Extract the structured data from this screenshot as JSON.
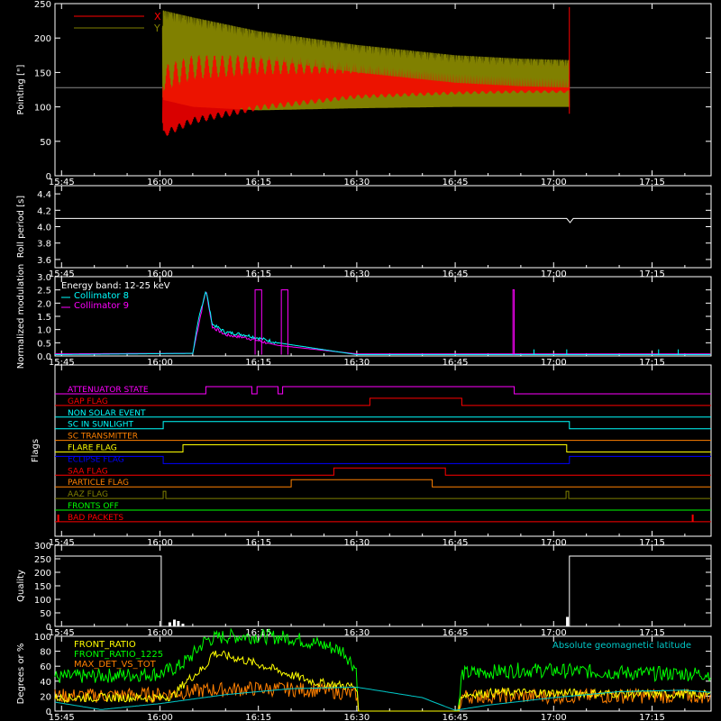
{
  "colors": {
    "background": "#000000",
    "axis": "#ffffff",
    "x_series": "#ff0000",
    "y_series": "#808000",
    "collimator8": "#00ffff",
    "collimator9": "#ff00ff",
    "front_ratio": "#ffff00",
    "front_ratio_1225": "#00ff00",
    "max_det": "#ff8000",
    "geomag": "#00c8c8"
  },
  "time_axis": {
    "tick_labels": [
      "15:45",
      "16:00",
      "16:15",
      "16:30",
      "16:45",
      "17:00",
      "17:15"
    ],
    "tick_minutes": [
      945,
      960,
      975,
      990,
      1005,
      1020,
      1035
    ],
    "range_minutes": [
      944,
      1044
    ]
  },
  "chart_data": [
    {
      "type": "line",
      "ylabel": "Pointing [\"]",
      "yticks": [
        "0",
        "50",
        "100",
        "150",
        "200",
        "250"
      ],
      "ylim": [
        0,
        250
      ],
      "legend": [
        "X",
        "Y"
      ],
      "series": [
        {
          "name": "X",
          "color": "#ff0000",
          "x": [
            944,
            960,
            960.5,
            965,
            975,
            990,
            1005,
            1015,
            1022.5
          ],
          "y": [
            128,
            128,
            55,
            75,
            95,
            112,
            118,
            120,
            120
          ],
          "upper": [
            128,
            128,
            160,
            175,
            175,
            168,
            163,
            160,
            160
          ]
        },
        {
          "name": "Y",
          "color": "#808000",
          "x": [
            944,
            960,
            960.5,
            965,
            975,
            990,
            1005,
            1015,
            1022.5
          ],
          "y": [
            128,
            128,
            240,
            230,
            210,
            190,
            175,
            170,
            168
          ],
          "lower": [
            128,
            128,
            110,
            100,
            95,
            98,
            100,
            100,
            100
          ]
        },
        {
          "name": "baseline",
          "x": [
            944,
            960,
            1022.5,
            1044
          ],
          "y": [
            128,
            128,
            128,
            128
          ]
        }
      ]
    },
    {
      "type": "line",
      "ylabel": "Roll period [s]",
      "yticks": [
        "3.6",
        "3.8",
        "4.0",
        "4.2",
        "4.4"
      ],
      "ylim": [
        3.5,
        4.5
      ],
      "series": [
        {
          "name": "roll",
          "x": [
            944,
            1044
          ],
          "y": [
            4.1,
            4.1
          ]
        }
      ]
    },
    {
      "type": "line",
      "ylabel": "Normalized modulation",
      "yticks": [
        "0.0",
        "0.5",
        "1.0",
        "1.5",
        "2.0",
        "2.5",
        "3.0"
      ],
      "ylim": [
        0,
        3
      ],
      "legend": [
        "Energy band: 12-25 keV",
        "Collimator 8",
        "Collimator 9"
      ],
      "series": [
        {
          "name": "Collimator 8",
          "color": "#00ffff",
          "x": [
            944,
            965,
            966,
            967,
            968,
            970,
            973,
            978,
            990,
            1005,
            1044
          ],
          "y": [
            0.05,
            0.1,
            1.5,
            2.5,
            1.2,
            0.9,
            0.8,
            0.5,
            0.05,
            0.05,
            0.05
          ]
        },
        {
          "name": "Collimator 9",
          "color": "#ff00ff",
          "x": [
            944,
            965,
            966,
            967,
            968,
            970,
            973,
            978,
            990,
            1005,
            1044
          ],
          "y": [
            0.08,
            0.1,
            1.3,
            2.5,
            1.1,
            0.8,
            0.7,
            0.4,
            0.08,
            0.08,
            0.08
          ],
          "spikes": [
            [
              974.5,
              975.5
            ],
            [
              978.5,
              979.5
            ],
            [
              1013.8,
              1014.0
            ]
          ]
        }
      ]
    },
    {
      "type": "table",
      "ylabel": "Flags",
      "flags": [
        {
          "label": "ATTENUATOR STATE",
          "color": "#ff00ff",
          "steps": [
            [
              944,
              0
            ],
            [
              967,
              1
            ],
            [
              974,
              0
            ],
            [
              974.8,
              1
            ],
            [
              978,
              0
            ],
            [
              978.7,
              1
            ],
            [
              1014,
              0
            ]
          ]
        },
        {
          "label": "GAP FLAG",
          "color": "#ff0000",
          "steps": [
            [
              944,
              0
            ],
            [
              992,
              1
            ],
            [
              1006,
              0
            ]
          ]
        },
        {
          "label": "NON SOLAR EVENT",
          "color": "#00ffff",
          "steps": [
            [
              944,
              0
            ]
          ]
        },
        {
          "label": "SC IN SUNLIGHT",
          "color": "#00ffff",
          "steps": [
            [
              944,
              0
            ],
            [
              960.5,
              1
            ],
            [
              1022.4,
              0
            ]
          ]
        },
        {
          "label": "SC TRANSMITTER",
          "color": "#ff8000",
          "steps": [
            [
              944,
              0
            ]
          ]
        },
        {
          "label": "FLARE FLAG",
          "color": "#ffff00",
          "steps": [
            [
              944,
              0
            ],
            [
              963.5,
              1
            ],
            [
              1022,
              0
            ]
          ]
        },
        {
          "label": "ECLIPSE FLAG",
          "color": "#0000ff",
          "steps": [
            [
              944,
              1
            ],
            [
              960.5,
              0
            ],
            [
              1022.4,
              1
            ]
          ]
        },
        {
          "label": "SAA FLAG",
          "color": "#ff0000",
          "steps": [
            [
              944,
              0
            ],
            [
              986.5,
              1
            ],
            [
              1003.5,
              0
            ]
          ]
        },
        {
          "label": "PARTICLE FLAG",
          "color": "#ff8000",
          "steps": [
            [
              944,
              0
            ],
            [
              980,
              1
            ],
            [
              1001.5,
              0
            ]
          ]
        },
        {
          "label": "AAZ FLAG",
          "color": "#808000",
          "steps": [
            [
              944,
              0
            ],
            [
              960.5,
              1
            ],
            [
              960.9,
              0
            ],
            [
              1021.9,
              1
            ],
            [
              1022.3,
              0
            ]
          ]
        },
        {
          "label": "FRONTS OFF",
          "color": "#00ff00",
          "steps": [
            [
              944,
              0
            ]
          ]
        },
        {
          "label": "BAD PACKETS",
          "color": "#ff0000",
          "steps": [
            [
              944,
              0
            ]
          ],
          "spikes": [
            944.5,
            1041.2
          ]
        }
      ]
    },
    {
      "type": "line",
      "ylabel": "Quality",
      "yticks": [
        "0",
        "50",
        "100",
        "150",
        "200",
        "250",
        "300"
      ],
      "ylim": [
        0,
        300
      ],
      "series": [
        {
          "name": "quality",
          "x": [
            944,
            960.2,
            960.2,
            1022.4,
            1022.4,
            1044
          ],
          "y": [
            260,
            260,
            0,
            0,
            260,
            260
          ],
          "blips": [
            [
              961.5,
              15
            ],
            [
              962.2,
              25
            ],
            [
              962.8,
              20
            ],
            [
              963.5,
              10
            ],
            [
              1022.1,
              35
            ]
          ]
        }
      ]
    },
    {
      "type": "line",
      "ylabel": "Degrees or %",
      "yticks": [
        "0",
        "20",
        "40",
        "60",
        "80",
        "100"
      ],
      "ylim": [
        0,
        100
      ],
      "legend": [
        "FRONT_RATIO",
        "FRONT_RATIO_1225",
        "MAX_DET_VS_TOT"
      ],
      "annotation": "Absolute geomagnetic latitude",
      "series": [
        {
          "name": "FRONT_RATIO_1225",
          "color": "#00ff00",
          "x": [
            944,
            960,
            963,
            965,
            967,
            970,
            975,
            980,
            985,
            988,
            990,
            990.2,
            1005.5,
            1006,
            1015,
            1025,
            1035,
            1044
          ],
          "y": [
            45,
            50,
            60,
            75,
            95,
            100,
            100,
            98,
            88,
            80,
            55,
            0,
            0,
            50,
            55,
            53,
            50,
            50
          ],
          "noise": 10
        },
        {
          "name": "FRONT_RATIO",
          "color": "#ffff00",
          "x": [
            944,
            960,
            962,
            964,
            967,
            968,
            972,
            976,
            980,
            984,
            988,
            990,
            990.2,
            1005.5,
            1006,
            1012,
            1044
          ],
          "y": [
            18,
            18,
            20,
            40,
            60,
            78,
            70,
            60,
            48,
            38,
            34,
            33,
            0,
            0,
            22,
            25,
            22
          ],
          "noise": 6
        },
        {
          "name": "MAX_DET_VS_TOT",
          "color": "#ff8000",
          "x": [
            944,
            960,
            967,
            975,
            985,
            990,
            990.2,
            1005.5,
            1006,
            1044
          ],
          "y": [
            20,
            22,
            28,
            30,
            28,
            22,
            0,
            0,
            20,
            20
          ],
          "noise": 10
        },
        {
          "name": "Absolute geomagnetic latitude",
          "color": "#00c8c8",
          "x": [
            944,
            951,
            960,
            970,
            980,
            990,
            1000,
            1005,
            1010,
            1020,
            1030,
            1040,
            1044
          ],
          "y": [
            12,
            2,
            10,
            22,
            30,
            32,
            18,
            1,
            8,
            18,
            26,
            28,
            25
          ]
        }
      ]
    }
  ]
}
